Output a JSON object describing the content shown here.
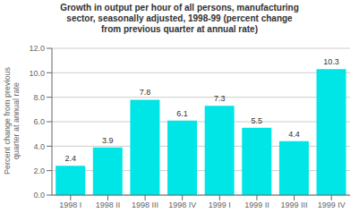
{
  "chart_data": {
    "type": "bar",
    "title": "Growth in output per hour of all persons, manufacturing\nsector, seasonally adjusted, 1998-99 (percent change\nfrom previous quarter at annual rate)",
    "ylabel": "Percent change from previous\nquarter at annual rate",
    "categories": [
      "1998 I",
      "1998 II",
      "1998 III",
      "1998 IV",
      "1999 I",
      "1999 II",
      "1999 III",
      "1999 IV"
    ],
    "values": [
      2.4,
      3.9,
      7.8,
      6.1,
      7.3,
      5.5,
      4.4,
      10.3
    ],
    "color": "#00E5E5",
    "ylim": [
      0.0,
      12.0
    ],
    "yticks": [
      {
        "value": 0.0,
        "label": "0.0"
      },
      {
        "value": 2.0,
        "label": "2.0"
      },
      {
        "value": 4.0,
        "label": "4.0"
      },
      {
        "value": 6.0,
        "label": "6.0"
      },
      {
        "value": 8.0,
        "label": "8.0"
      },
      {
        "value": 10.0,
        "label": "10.0"
      },
      {
        "value": 12.0,
        "label": "12.0"
      }
    ],
    "grid": true,
    "data_labels": true
  }
}
